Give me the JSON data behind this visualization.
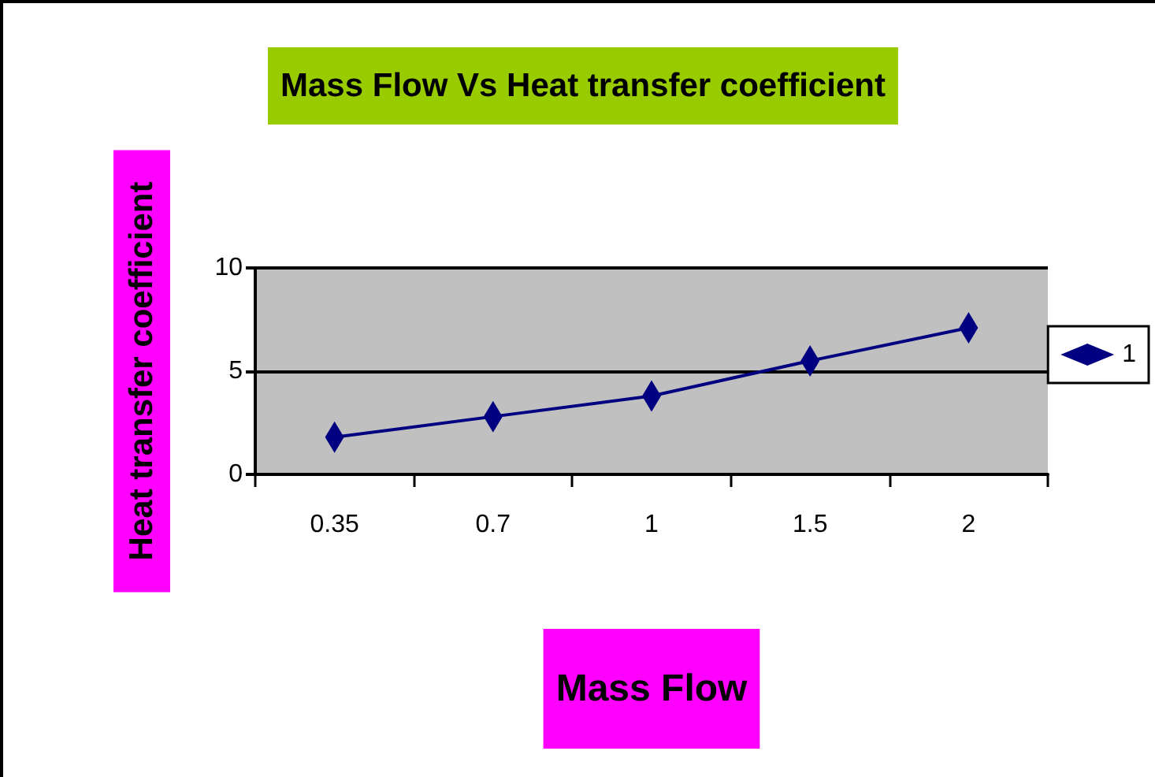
{
  "chart_data": {
    "type": "line",
    "title": "Mass Flow Vs Heat transfer coefficient",
    "xlabel": "Mass Flow",
    "ylabel": "Heat transfer coefficient",
    "categories": [
      "0.35",
      "0.7",
      "1",
      "1.5",
      "2"
    ],
    "series": [
      {
        "name": "1",
        "color": "#000080",
        "values": [
          1.8,
          2.8,
          3.8,
          5.5,
          7.1
        ]
      }
    ],
    "ylim": [
      0,
      10
    ],
    "yticks": [
      0,
      5,
      10
    ],
    "grid": "y",
    "legend": "right",
    "marker": "diamond",
    "line_style": "solid"
  }
}
